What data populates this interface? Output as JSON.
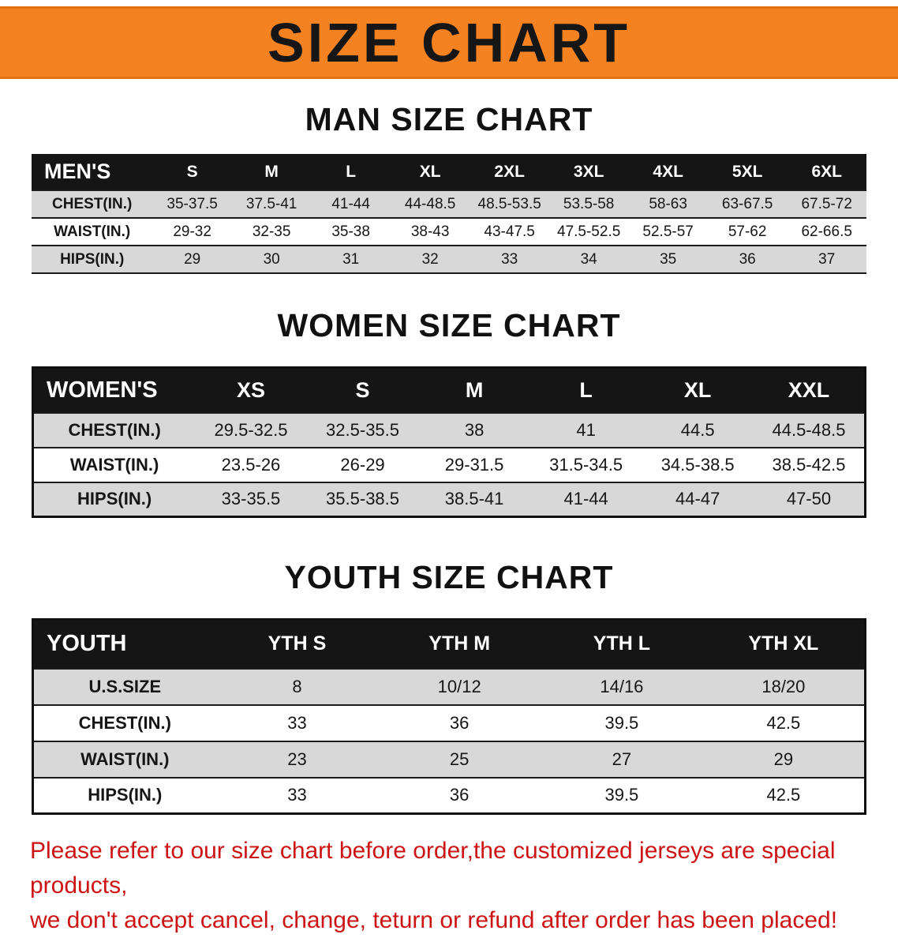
{
  "colors": {
    "banner_bg": "#f58220",
    "banner_border": "#e0720f",
    "table_header_bg": "#151515",
    "row_shade": "#d8d8d8",
    "note_text": "#cc1414"
  },
  "banner": {
    "title": "SIZE CHART"
  },
  "sections": [
    {
      "heading": "MAN SIZE CHART",
      "table": {
        "label": "MEN'S",
        "columns": [
          "S",
          "M",
          "L",
          "XL",
          "2XL",
          "3XL",
          "4XL",
          "5XL",
          "6XL"
        ],
        "rows": [
          {
            "label": "CHEST(IN.)",
            "values": [
              "35-37.5",
              "37.5-41",
              "41-44",
              "44-48.5",
              "48.5-53.5",
              "53.5-58",
              "58-63",
              "63-67.5",
              "67.5-72"
            ]
          },
          {
            "label": "WAIST(IN.)",
            "values": [
              "29-32",
              "32-35",
              "35-38",
              "38-43",
              "43-47.5",
              "47.5-52.5",
              "52.5-57",
              "57-62",
              "62-66.5"
            ]
          },
          {
            "label": "HIPS(IN.)",
            "values": [
              "29",
              "30",
              "31",
              "32",
              "33",
              "34",
              "35",
              "36",
              "37"
            ]
          }
        ]
      }
    },
    {
      "heading": "WOMEN SIZE CHART",
      "table": {
        "label": "WOMEN'S",
        "columns": [
          "XS",
          "S",
          "M",
          "L",
          "XL",
          "XXL"
        ],
        "rows": [
          {
            "label": "CHEST(IN.)",
            "values": [
              "29.5-32.5",
              "32.5-35.5",
              "38",
              "41",
              "44.5",
              "44.5-48.5"
            ]
          },
          {
            "label": "WAIST(IN.)",
            "values": [
              "23.5-26",
              "26-29",
              "29-31.5",
              "31.5-34.5",
              "34.5-38.5",
              "38.5-42.5"
            ]
          },
          {
            "label": "HIPS(IN.)",
            "values": [
              "33-35.5",
              "35.5-38.5",
              "38.5-41",
              "41-44",
              "44-47",
              "47-50"
            ]
          }
        ]
      }
    },
    {
      "heading": "YOUTH SIZE CHART",
      "table": {
        "label": "YOUTH",
        "columns": [
          "YTH S",
          "YTH M",
          "YTH L",
          "YTH XL"
        ],
        "rows": [
          {
            "label": "U.S.SIZE",
            "values": [
              "8",
              "10/12",
              "14/16",
              "18/20"
            ]
          },
          {
            "label": "CHEST(IN.)",
            "values": [
              "33",
              "36",
              "39.5",
              "42.5"
            ]
          },
          {
            "label": "WAIST(IN.)",
            "values": [
              "23",
              "25",
              "27",
              "29"
            ]
          },
          {
            "label": "HIPS(IN.)",
            "values": [
              "33",
              "36",
              "39.5",
              "42.5"
            ]
          }
        ]
      }
    }
  ],
  "footer": {
    "line1": "Please refer to our size chart before order,the customized jerseys are special products,",
    "line2": "we don't accept cancel, change, teturn or refund after order has been placed!"
  }
}
